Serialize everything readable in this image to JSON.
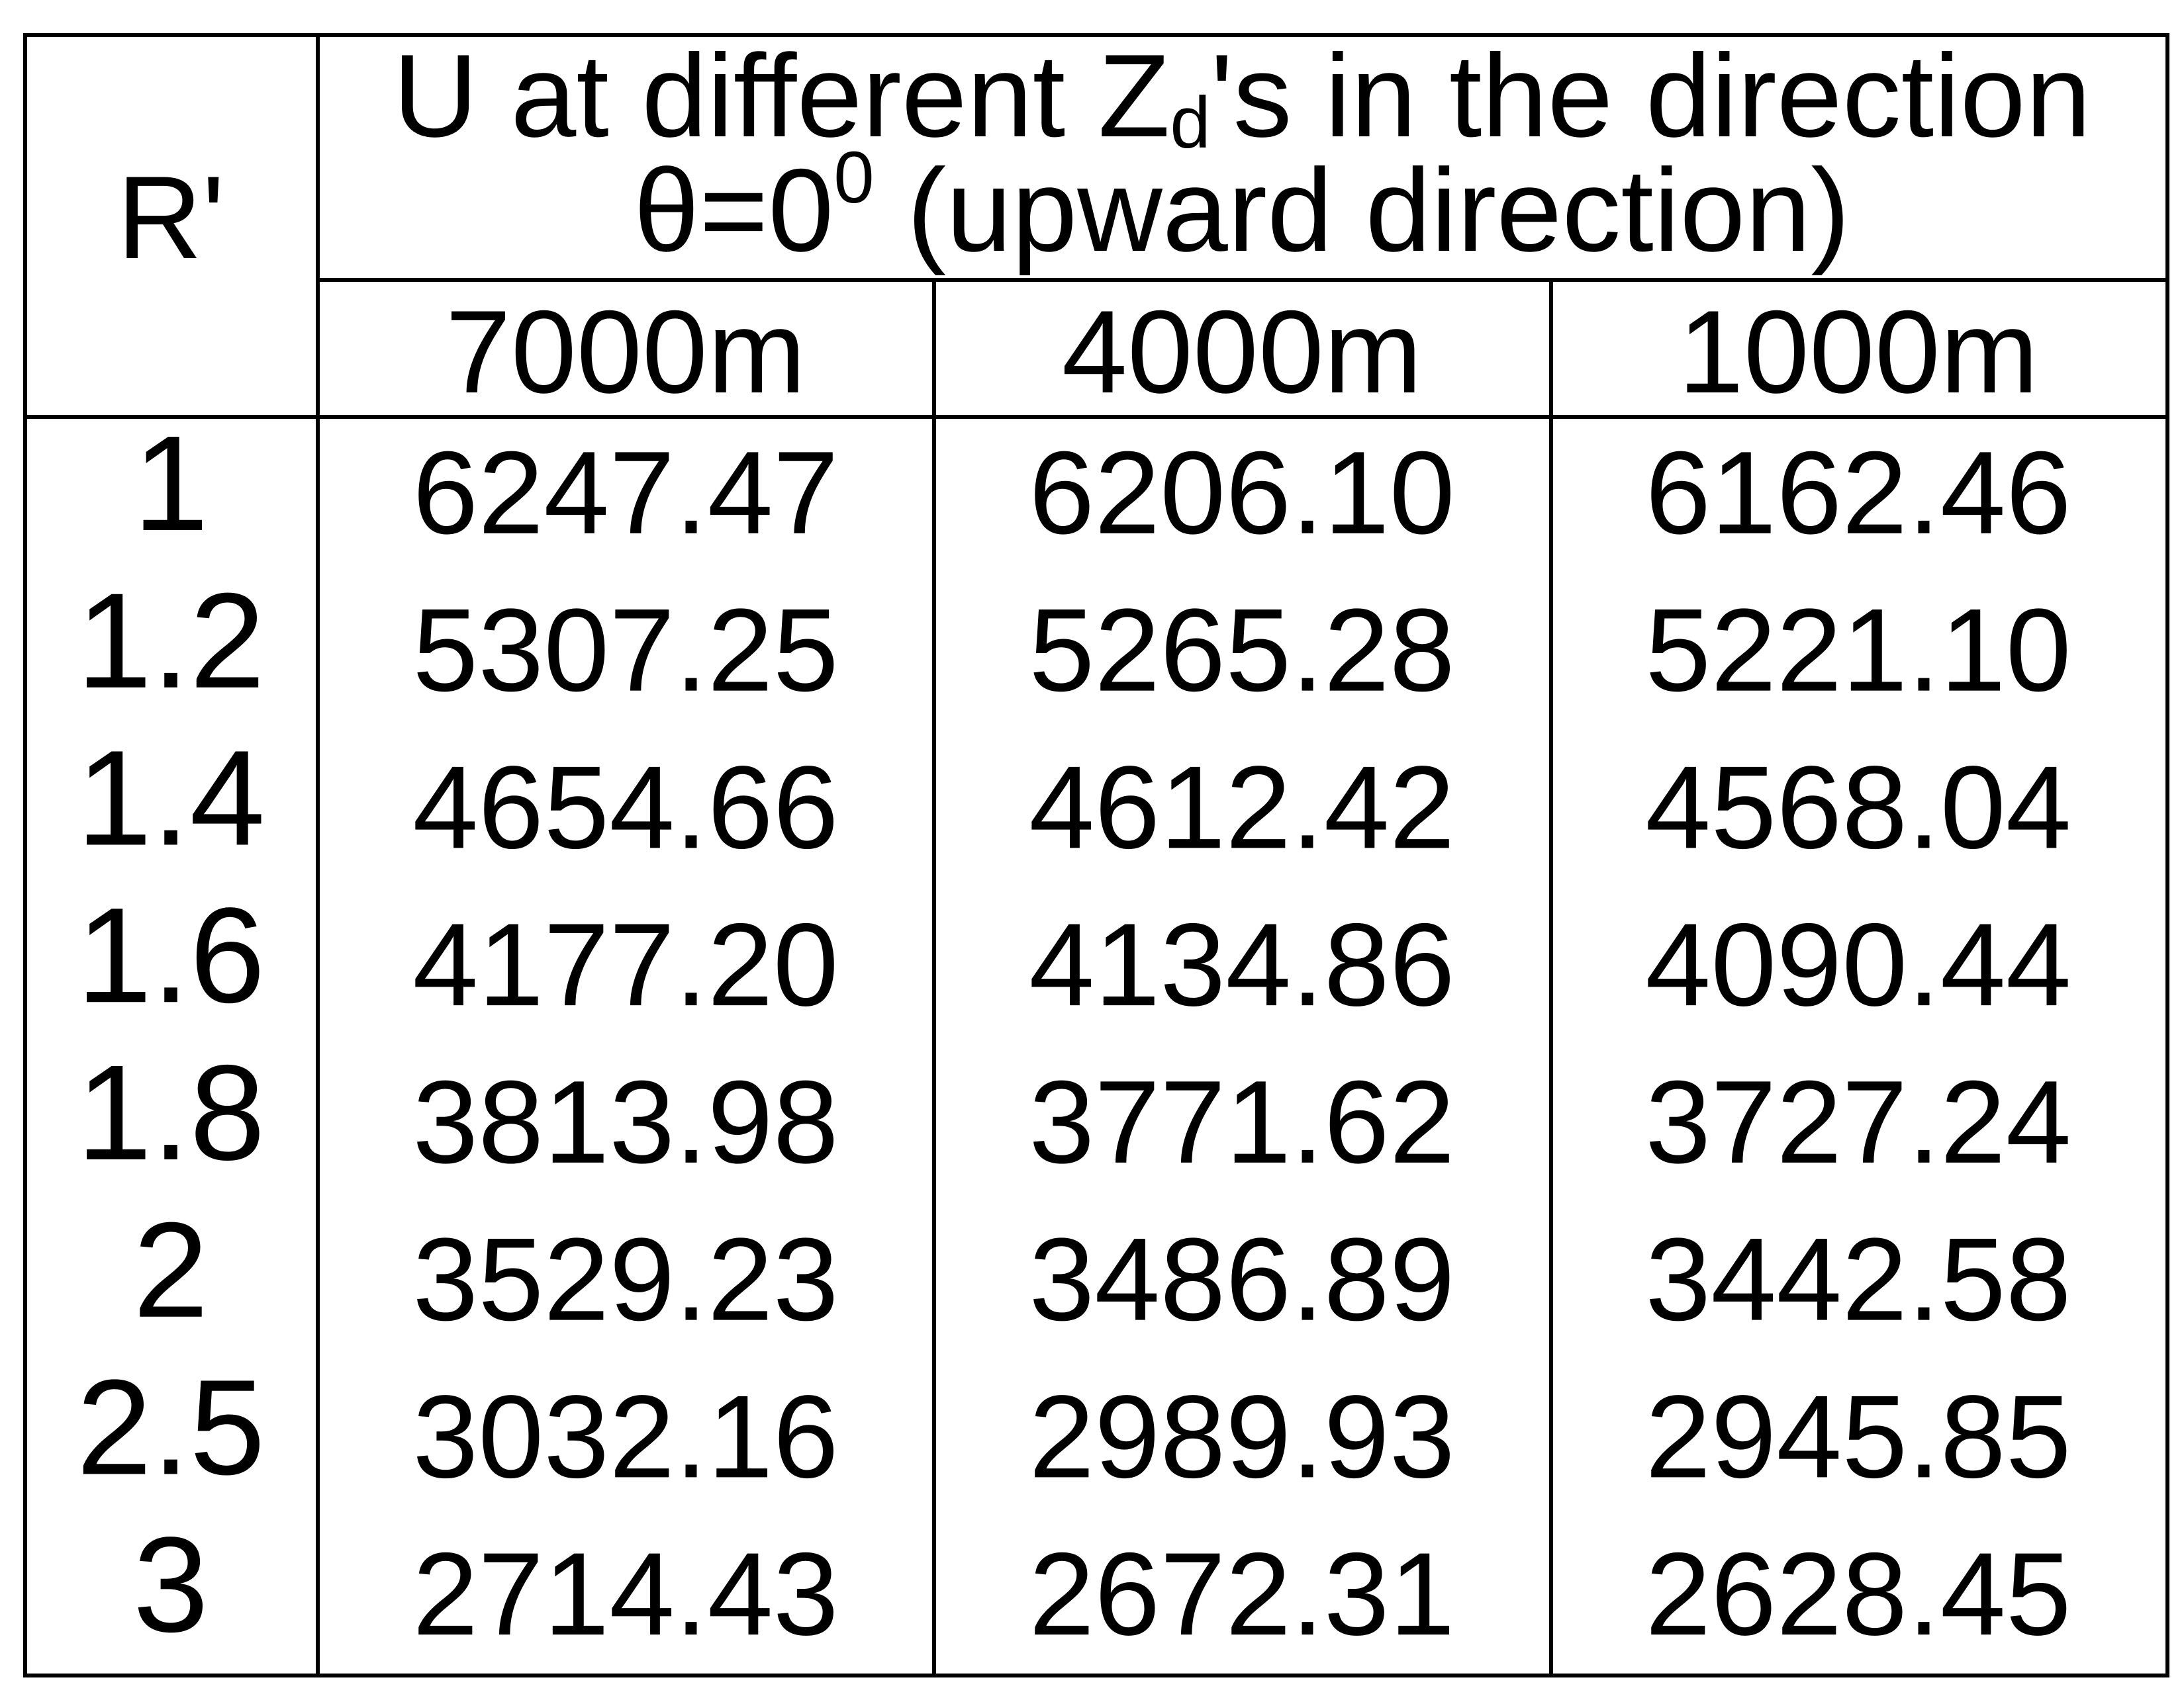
{
  "table": {
    "header": {
      "row_label": "R'",
      "title": {
        "line1": [
          "U at different Z",
          "d",
          "'s in the direction"
        ],
        "line2": [
          "θ=0",
          "0",
          " (upward direction)"
        ]
      },
      "columns": [
        "7000m",
        "4000m",
        "1000m"
      ]
    },
    "rows": [
      {
        "label": "1",
        "values": [
          "6247.47",
          "6206.10",
          "6162.46"
        ]
      },
      {
        "label": "1.2",
        "values": [
          "5307.25",
          "5265.28",
          "5221.10"
        ]
      },
      {
        "label": "1.4",
        "values": [
          "4654.66",
          "4612.42",
          "4568.04"
        ]
      },
      {
        "label": "1.6",
        "values": [
          "4177.20",
          "4134.86",
          "4090.44"
        ]
      },
      {
        "label": "1.8",
        "values": [
          "3813.98",
          "3771.62",
          "3727.24"
        ]
      },
      {
        "label": "2",
        "values": [
          "3529.23",
          "3486.89",
          "3442.58"
        ]
      },
      {
        "label": "2.5",
        "values": [
          "3032.16",
          "2989.93",
          "2945.85"
        ]
      },
      {
        "label": "3",
        "values": [
          "2714.43",
          "2672.31",
          "2628.45"
        ]
      }
    ]
  }
}
